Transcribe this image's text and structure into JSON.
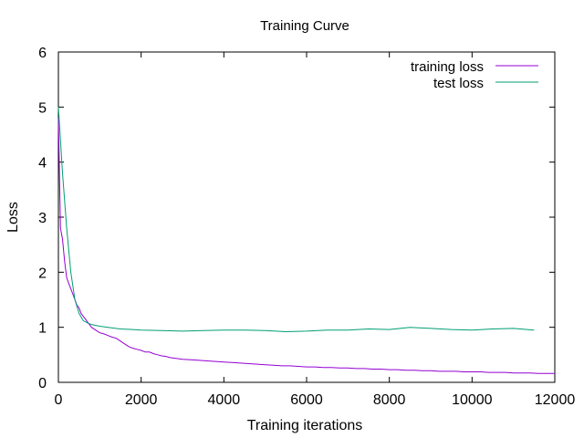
{
  "chart_data": {
    "type": "line",
    "title": "Training Curve",
    "xlabel": "Training iterations",
    "ylabel": "Loss",
    "xlim": [
      0,
      12000
    ],
    "ylim": [
      0,
      6
    ],
    "xticks": [
      0,
      2000,
      4000,
      6000,
      8000,
      10000,
      12000
    ],
    "yticks": [
      0,
      1,
      2,
      3,
      4,
      5,
      6
    ],
    "grid": false,
    "legend": "top-right",
    "series": [
      {
        "name": "training loss",
        "color": "#9400d3",
        "x": [
          0,
          50,
          100,
          150,
          200,
          250,
          300,
          350,
          400,
          450,
          500,
          550,
          600,
          650,
          700,
          750,
          800,
          900,
          1000,
          1100,
          1200,
          1300,
          1400,
          1500,
          1600,
          1700,
          1800,
          1900,
          2000,
          2100,
          2200,
          2300,
          2400,
          2500,
          2600,
          2700,
          2800,
          2900,
          3000,
          3200,
          3400,
          3600,
          3800,
          4000,
          4200,
          4400,
          4600,
          4800,
          5000,
          5200,
          5400,
          5600,
          5800,
          6000,
          6200,
          6400,
          6600,
          6800,
          7000,
          7200,
          7400,
          7600,
          7800,
          8000,
          8200,
          8400,
          8600,
          8800,
          9000,
          9200,
          9400,
          9600,
          9800,
          10000,
          10200,
          10400,
          10600,
          10800,
          11000,
          11200,
          11400,
          11600,
          11800,
          12000
        ],
        "values": [
          4.8,
          2.8,
          2.6,
          2.2,
          1.9,
          1.8,
          1.7,
          1.6,
          1.5,
          1.4,
          1.35,
          1.25,
          1.2,
          1.15,
          1.1,
          1.05,
          1.0,
          0.95,
          0.9,
          0.88,
          0.85,
          0.82,
          0.8,
          0.75,
          0.7,
          0.65,
          0.62,
          0.6,
          0.58,
          0.55,
          0.55,
          0.52,
          0.5,
          0.48,
          0.47,
          0.45,
          0.44,
          0.43,
          0.42,
          0.41,
          0.4,
          0.39,
          0.38,
          0.37,
          0.36,
          0.35,
          0.34,
          0.33,
          0.32,
          0.31,
          0.3,
          0.3,
          0.29,
          0.28,
          0.28,
          0.27,
          0.27,
          0.26,
          0.26,
          0.25,
          0.25,
          0.24,
          0.24,
          0.23,
          0.23,
          0.22,
          0.22,
          0.21,
          0.21,
          0.2,
          0.2,
          0.2,
          0.19,
          0.19,
          0.19,
          0.18,
          0.18,
          0.18,
          0.17,
          0.17,
          0.17,
          0.16,
          0.16,
          0.16
        ]
      },
      {
        "name": "test loss",
        "color": "#009e73",
        "x": [
          0,
          100,
          200,
          300,
          400,
          500,
          600,
          700,
          800,
          1000,
          1200,
          1500,
          1800,
          2000,
          2500,
          3000,
          3500,
          4000,
          4500,
          5000,
          5500,
          6000,
          6500,
          7000,
          7500,
          8000,
          8500,
          9000,
          9500,
          10000,
          10500,
          11000,
          11500
        ],
        "values": [
          5.0,
          3.8,
          2.8,
          2.0,
          1.5,
          1.25,
          1.12,
          1.08,
          1.05,
          1.02,
          1.0,
          0.97,
          0.96,
          0.95,
          0.94,
          0.93,
          0.94,
          0.95,
          0.95,
          0.94,
          0.92,
          0.93,
          0.95,
          0.95,
          0.97,
          0.96,
          1.0,
          0.98,
          0.96,
          0.95,
          0.97,
          0.98,
          0.95
        ]
      }
    ]
  }
}
